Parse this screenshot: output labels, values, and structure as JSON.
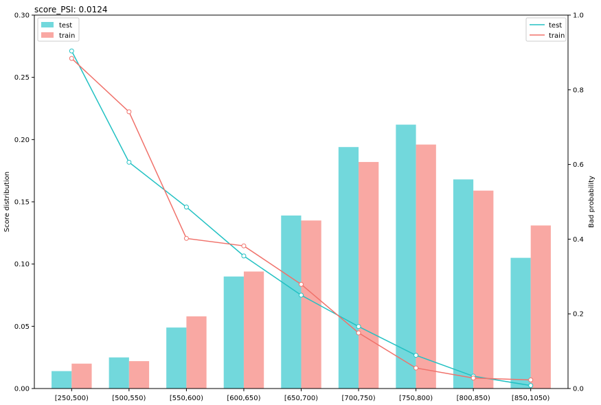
{
  "chart_data": {
    "type": "bar",
    "title": "score_PSI: 0.0124",
    "categories": [
      "[250,500)",
      "[500,550)",
      "[550,600)",
      "[600,650)",
      "[650,700)",
      "[700,750)",
      "[750,800)",
      "[800,850)",
      "[850,1050)"
    ],
    "ylabel": "Score distribution",
    "y2label": "Bad probability",
    "ylim": [
      0,
      0.3
    ],
    "y2lim": [
      0,
      1.0
    ],
    "yticks": [
      "0.00",
      "0.05",
      "0.10",
      "0.15",
      "0.20",
      "0.25",
      "0.30"
    ],
    "y2ticks": [
      "0.0",
      "0.2",
      "0.4",
      "0.6",
      "0.8",
      "1.0"
    ],
    "grid": false,
    "bar_series": [
      {
        "name": "test",
        "color": "#72d8dc",
        "values": [
          0.014,
          0.025,
          0.049,
          0.09,
          0.139,
          0.194,
          0.212,
          0.168,
          0.105
        ]
      },
      {
        "name": "train",
        "color": "#f9a8a3",
        "values": [
          0.02,
          0.022,
          0.058,
          0.094,
          0.135,
          0.182,
          0.196,
          0.159,
          0.131
        ]
      }
    ],
    "line_series": [
      {
        "name": "test",
        "color": "#22c1c3",
        "axis": "right",
        "values": [
          0.904,
          0.606,
          0.486,
          0.355,
          0.25,
          0.166,
          0.089,
          0.033,
          0.008
        ]
      },
      {
        "name": "train",
        "color": "#f0716a",
        "axis": "right",
        "values": [
          0.884,
          0.741,
          0.402,
          0.382,
          0.279,
          0.149,
          0.055,
          0.028,
          0.023
        ]
      }
    ],
    "legend_left": "top-left",
    "legend_right": "top-right"
  }
}
